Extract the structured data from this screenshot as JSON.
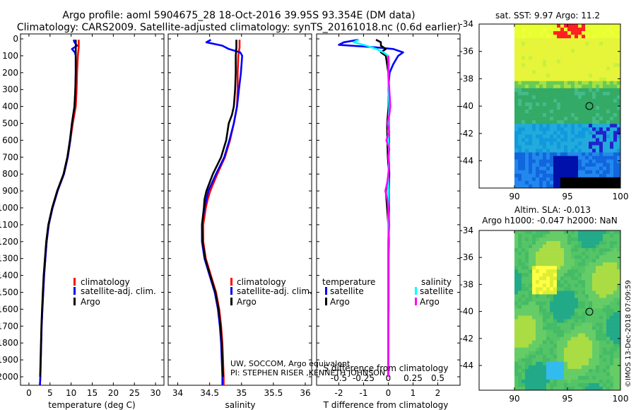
{
  "title": {
    "line1": "Argo profile: aoml 5904675_28 18-Oct-2016 39.95S 93.354E (DM data)",
    "line2": "Climatology: CARS2009. Satellite-adjusted climatology: synTS_20161018.nc (0.6d earlier)"
  },
  "depth_ticks": [
    "0",
    "100",
    "200",
    "300",
    "400",
    "500",
    "600",
    "700",
    "800",
    "900",
    "1000",
    "1100",
    "1200",
    "1300",
    "1400",
    "1500",
    "1600",
    "1700",
    "1800",
    "1900",
    "2000"
  ],
  "legend_main": [
    "climatology",
    "satellite-adj. clim.",
    "Argo"
  ],
  "legend_diff": {
    "temperature": "temperature",
    "salinity": "salinity",
    "satellite": "satellite",
    "argo": "Argo"
  },
  "credits": {
    "line1": "UW, SOCCOM, Argo equivalent",
    "line2": "PI: STEPHEN RISER ,KENNETH JOHNSON"
  },
  "map_sst": {
    "title": "sat. SST: 9.97 Argo: 11.2"
  },
  "map_sla": {
    "title1": "Altim. SLA: -0.013",
    "title2": "Argo h1000: -0.047 h2000: NaN"
  },
  "map_yticks": [
    "-34",
    "-36",
    "-38",
    "-40",
    "-42",
    "-44"
  ],
  "map_xticks": [
    "90",
    "95",
    "100"
  ],
  "stamp": "©IMOS 13-Dec-2018 07:09:59",
  "colors": {
    "climatology": "#ff0000",
    "satellite": "#0000ff",
    "argo": "#000000",
    "satellite_S": "#00ffff",
    "argo_S": "#ff00ff"
  },
  "chart_data": [
    {
      "type": "line",
      "title": "",
      "xlabel": "temperature (deg C)",
      "ylabel": "",
      "xlim": [
        -2,
        32
      ],
      "ylim": [
        2050,
        -30
      ],
      "xticks": [
        "0",
        "5",
        "10",
        "15",
        "20",
        "25",
        "30"
      ],
      "series": [
        {
          "name": "climatology",
          "color": "#ff0000",
          "depth": [
            5,
            50,
            100,
            200,
            300,
            400,
            500,
            600,
            700,
            800,
            900,
            1000,
            1100,
            1200,
            1300,
            1400,
            1500,
            1600,
            1700,
            1800,
            1900,
            2000,
            2050
          ],
          "values": [
            11.8,
            11.8,
            11.6,
            11.4,
            11.3,
            11.1,
            10.4,
            9.8,
            9.2,
            8.3,
            6.8,
            5.6,
            4.7,
            4.2,
            3.9,
            3.6,
            3.4,
            3.2,
            3.0,
            2.9,
            2.8,
            2.7,
            2.6
          ]
        },
        {
          "name": "satellite-adj. clim.",
          "color": "#0000ff",
          "depth": [
            5,
            20,
            40,
            60,
            80,
            100,
            200,
            300,
            400,
            500,
            600,
            700,
            800,
            900,
            1000,
            1100,
            1200,
            1300,
            1400,
            1500,
            1600,
            1700,
            1800,
            1900,
            2000,
            2050
          ],
          "values": [
            10.6,
            10.8,
            11.4,
            10.2,
            10.9,
            11.1,
            11.1,
            11.0,
            10.8,
            10.2,
            9.8,
            9.2,
            8.3,
            6.8,
            5.6,
            4.7,
            4.2,
            3.9,
            3.6,
            3.4,
            3.2,
            3.0,
            2.9,
            2.8,
            2.7,
            2.6
          ]
        },
        {
          "name": "Argo",
          "color": "#000000",
          "depth": [
            5,
            50,
            100,
            200,
            300,
            400,
            500,
            600,
            700,
            800,
            900,
            1000,
            1100,
            1200,
            1300,
            1400,
            1500,
            1600,
            1700,
            1800,
            1900,
            2000
          ],
          "values": [
            11.1,
            11.1,
            11.1,
            11.1,
            11.0,
            10.8,
            10.2,
            9.7,
            9.1,
            8.2,
            6.7,
            5.5,
            4.6,
            4.1,
            3.8,
            3.5,
            3.3,
            3.1,
            2.95,
            2.85,
            2.75,
            2.65
          ]
        }
      ]
    },
    {
      "type": "line",
      "title": "",
      "xlabel": "salinity",
      "ylabel": "",
      "xlim": [
        33.85,
        36.1
      ],
      "ylim": [
        2050,
        -30
      ],
      "xticks": [
        "34",
        "34.5",
        "35",
        "35.5",
        "36"
      ],
      "series": [
        {
          "name": "climatology",
          "color": "#ff0000",
          "depth": [
            5,
            50,
            100,
            200,
            300,
            400,
            500,
            600,
            700,
            800,
            900,
            950,
            1000,
            1100,
            1200,
            1300,
            1400,
            1500,
            1600,
            1700,
            1800,
            1900,
            2000,
            2050
          ],
          "values": [
            34.97,
            34.97,
            34.95,
            34.94,
            34.94,
            34.93,
            34.88,
            34.82,
            34.74,
            34.62,
            34.51,
            34.47,
            34.44,
            34.4,
            34.4,
            34.44,
            34.52,
            34.6,
            34.65,
            34.68,
            34.7,
            34.71,
            34.72,
            34.72
          ]
        },
        {
          "name": "satellite-adj. clim.",
          "color": "#0000ff",
          "depth": [
            5,
            20,
            40,
            60,
            80,
            100,
            200,
            300,
            400,
            500,
            600,
            700,
            800,
            900,
            950,
            1000,
            1100,
            1200,
            1300,
            1400,
            1500,
            1600,
            1700,
            1800,
            1900,
            2000,
            2050
          ],
          "values": [
            34.52,
            34.45,
            34.7,
            34.8,
            34.98,
            35.01,
            34.99,
            34.96,
            34.93,
            34.88,
            34.81,
            34.73,
            34.6,
            34.48,
            34.45,
            34.42,
            34.38,
            34.38,
            34.42,
            34.5,
            34.58,
            34.63,
            34.66,
            34.68,
            34.69,
            34.7,
            34.7
          ]
        },
        {
          "name": "Argo",
          "color": "#000000",
          "depth": [
            5,
            50,
            100,
            200,
            300,
            400,
            450,
            500,
            600,
            700,
            800,
            900,
            950,
            1000,
            1100,
            1200,
            1300,
            1400,
            1500,
            1600,
            1700,
            1800,
            1900,
            2000
          ],
          "values": [
            34.92,
            34.92,
            34.91,
            34.91,
            34.9,
            34.88,
            34.85,
            34.8,
            34.76,
            34.68,
            34.55,
            34.45,
            34.42,
            34.41,
            34.38,
            34.39,
            34.43,
            34.51,
            34.59,
            34.64,
            34.67,
            34.69,
            34.7,
            34.71
          ]
        }
      ]
    },
    {
      "type": "line",
      "title": "",
      "xlabel": "T difference from climatology",
      "xlabel2": "S difference from climatology",
      "ylabel": "",
      "xlim": [
        -2.9,
        2.9
      ],
      "ylim": [
        2050,
        -30
      ],
      "xticks": [
        "-2",
        "-1",
        "0",
        "1",
        "2"
      ],
      "xticks2": [
        "-0.5",
        "-0.25",
        "0",
        "0.25",
        "0.5"
      ],
      "series": [
        {
          "name": "temperature satellite",
          "color": "#0000ff",
          "depth": [
            5,
            20,
            35,
            50,
            60,
            80,
            100,
            150,
            200,
            300,
            400,
            500,
            600,
            700,
            800,
            900,
            1000,
            1100,
            1200,
            1300,
            1400,
            1500,
            1600,
            1700,
            1800,
            1900,
            2000
          ],
          "values": [
            -1.2,
            -1.8,
            -2.0,
            -0.5,
            0.2,
            0.6,
            0.4,
            0.2,
            0.05,
            0.0,
            0.03,
            0.02,
            0.03,
            0.02,
            0.04,
            0.02,
            0.03,
            0.02,
            0.02,
            0.01,
            0.01,
            0.01,
            0.01,
            0.0,
            0.0,
            0.0,
            0.0
          ]
        },
        {
          "name": "temperature Argo",
          "color": "#000000",
          "depth": [
            5,
            20,
            40,
            60,
            80,
            100,
            200,
            300,
            400,
            500,
            600,
            700,
            800,
            900,
            1000,
            1100,
            1200,
            1300,
            1400,
            1500,
            1600,
            1700,
            1800,
            1900,
            2000
          ],
          "values": [
            -0.5,
            -0.3,
            -0.3,
            -0.1,
            -0.3,
            -0.1,
            0.0,
            0.02,
            0.01,
            -0.05,
            -0.04,
            -0.02,
            0.03,
            -0.1,
            -0.05,
            0.0,
            0.01,
            0.0,
            0.0,
            0.0,
            0.0,
            0.0,
            0.0,
            0.0,
            0.0
          ]
        },
        {
          "name": "salinity satellite",
          "color": "#00ffff",
          "depth": [
            5,
            20,
            40,
            60,
            80,
            100,
            150,
            200,
            300,
            400,
            500,
            600,
            700,
            800,
            900,
            1000,
            1100,
            1200,
            1300,
            1400,
            1500,
            1600,
            1700,
            1800,
            1900,
            2000
          ],
          "values": [
            -0.3,
            -0.35,
            -0.22,
            -0.12,
            -0.05,
            0.0,
            0.01,
            0.0,
            0.0,
            0.01,
            0.0,
            0.0,
            0.01,
            0.0,
            0.0,
            0.0,
            0.0,
            0.0,
            0.0,
            0.0,
            0.0,
            0.0,
            0.0,
            0.0,
            0.0,
            0.0
          ]
        },
        {
          "name": "salinity Argo",
          "color": "#ff00ff",
          "depth": [
            100,
            200,
            300,
            400,
            450,
            500,
            550,
            600,
            650,
            700,
            750,
            800,
            850,
            900,
            950,
            1000,
            1100,
            1200,
            1300,
            1400,
            1500,
            1600,
            1700,
            1800,
            1900,
            2000
          ],
          "values": [
            0.0,
            0.0,
            0.01,
            0.02,
            0.01,
            -0.01,
            0.01,
            -0.02,
            0.01,
            0.0,
            0.01,
            0.0,
            -0.01,
            -0.03,
            -0.01,
            0.0,
            0.01,
            0.0,
            0.0,
            0.0,
            0.0,
            0.0,
            0.0,
            0.0,
            0.0,
            0.0
          ]
        }
      ]
    }
  ]
}
